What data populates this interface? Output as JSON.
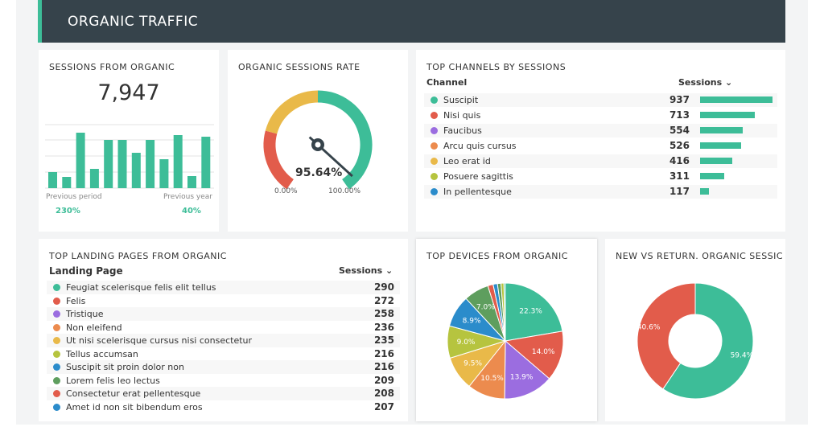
{
  "header": {
    "title": "ORGANIC TRAFFIC"
  },
  "colors": {
    "green": "#3dbd98",
    "red": "#e25c4b",
    "yellow": "#e9b949",
    "purple": "#9b6de0",
    "orange": "#ec8b4e",
    "lime": "#b6c43f",
    "blue": "#2b8ccb",
    "darkgreen": "#5e9e5e",
    "header": "#36434b"
  },
  "sessions": {
    "title": "SESSIONS FROM ORGANIC",
    "value": "7,947",
    "bars": [
      20,
      14,
      69,
      24,
      60,
      60,
      44,
      60,
      36,
      66,
      15,
      64
    ],
    "prev_period_label": "Previous period",
    "prev_period_value": "230%",
    "prev_year_label": "Previous year",
    "prev_year_value": "40%"
  },
  "rate": {
    "title": "ORGANIC SESSIONS RATE",
    "value": "95.64%",
    "percent": 95.64,
    "min": "0.00%",
    "max": "100.00%"
  },
  "channels": {
    "title": "TOP CHANNELS BY SESSIONS",
    "col1": "Channel",
    "col2": "Sessions",
    "rows": [
      {
        "label": "Suscipit",
        "value": "937",
        "n": 937,
        "color": "#3dbd98"
      },
      {
        "label": "Nisi quis",
        "value": "713",
        "n": 713,
        "color": "#e25c4b"
      },
      {
        "label": "Faucibus",
        "value": "554",
        "n": 554,
        "color": "#9b6de0"
      },
      {
        "label": "Arcu quis cursus",
        "value": "526",
        "n": 526,
        "color": "#ec8b4e"
      },
      {
        "label": "Leo erat id",
        "value": "416",
        "n": 416,
        "color": "#e9b949"
      },
      {
        "label": "Posuere sagittis",
        "value": "311",
        "n": 311,
        "color": "#b6c43f"
      },
      {
        "label": "In pellentesque",
        "value": "117",
        "n": 117,
        "color": "#2b8ccb"
      }
    ]
  },
  "landing": {
    "title": "TOP LANDING PAGES FROM ORGANIC",
    "col1": "Landing Page",
    "col2": "Sessions",
    "rows": [
      {
        "label": "Feugiat scelerisque felis elit tellus",
        "value": "290",
        "color": "#3dbd98"
      },
      {
        "label": "Felis",
        "value": "272",
        "color": "#e25c4b"
      },
      {
        "label": "Tristique",
        "value": "258",
        "color": "#9b6de0"
      },
      {
        "label": "Non eleifend",
        "value": "236",
        "color": "#ec8b4e"
      },
      {
        "label": "Ut nisi scelerisque cursus nisi consectetur",
        "value": "235",
        "color": "#e9b949"
      },
      {
        "label": "Tellus accumsan",
        "value": "216",
        "color": "#b6c43f"
      },
      {
        "label": "Suscipit sit proin dolor non",
        "value": "216",
        "color": "#2b8ccb"
      },
      {
        "label": "Lorem felis leo lectus",
        "value": "209",
        "color": "#5e9e5e"
      },
      {
        "label": "Consectetur erat pellentesque",
        "value": "208",
        "color": "#e25c4b"
      },
      {
        "label": "Amet id non sit bibendum eros",
        "value": "207",
        "color": "#2b8ccb"
      }
    ]
  },
  "chart_data": [
    {
      "type": "pie",
      "title": "TOP DEVICES FROM ORGANIC",
      "slices": [
        {
          "value": 22.3,
          "label": "22.3%",
          "color": "#3dbd98"
        },
        {
          "value": 14.0,
          "label": "14.0%",
          "color": "#e25c4b"
        },
        {
          "value": 13.9,
          "label": "13.9%",
          "color": "#9b6de0"
        },
        {
          "value": 10.5,
          "label": "10.5%",
          "color": "#ec8b4e"
        },
        {
          "value": 9.5,
          "label": "9.5%",
          "color": "#e9b949"
        },
        {
          "value": 9.0,
          "label": "9.0%",
          "color": "#b6c43f"
        },
        {
          "value": 8.9,
          "label": "8.9%",
          "color": "#2b8ccb"
        },
        {
          "value": 7.0,
          "label": "7.0%",
          "color": "#5e9e5e"
        },
        {
          "value": 1.5,
          "label": "",
          "color": "#e25c4b"
        },
        {
          "value": 1.2,
          "label": "",
          "color": "#2b8ccb"
        },
        {
          "value": 1.0,
          "label": "",
          "color": "#5e9e5e"
        },
        {
          "value": 0.8,
          "label": "",
          "color": "#b6c43f"
        },
        {
          "value": 0.4,
          "label": "",
          "color": "#3dbd98"
        }
      ]
    },
    {
      "type": "pie",
      "title": "NEW VS RETURN. ORGANIC SESSIC",
      "donut": true,
      "slices": [
        {
          "value": 59.4,
          "label": "59.4%",
          "color": "#3dbd98"
        },
        {
          "value": 40.6,
          "label": "40.6%",
          "color": "#e25c4b"
        }
      ]
    }
  ]
}
